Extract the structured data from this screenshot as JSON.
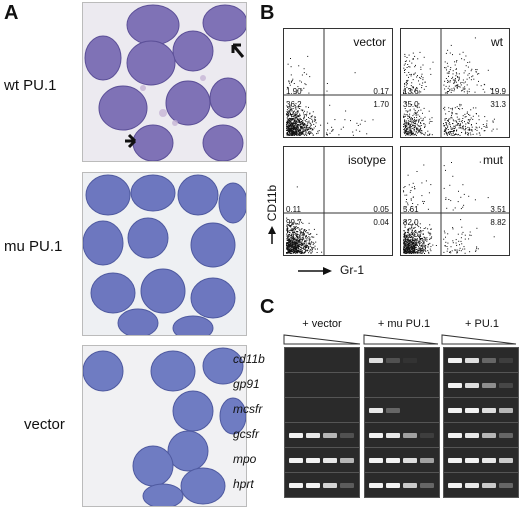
{
  "panel_a": {
    "letter": "A",
    "rows": [
      {
        "label": "wt PU.1"
      },
      {
        "label": "mu PU.1"
      },
      {
        "label": "vector"
      }
    ]
  },
  "panel_b": {
    "letter": "B",
    "y_axis_label": "CD11b",
    "x_axis_label": "Gr-1",
    "plots": [
      {
        "name": "vector",
        "ul": "1.90",
        "ur": "0.17",
        "ll": "36.2",
        "lr": "1.70"
      },
      {
        "name": "wt",
        "ul": "13.6",
        "ur": "19.9",
        "ll": "35.0",
        "lr": "31.3"
      },
      {
        "name": "isotype",
        "ul": "0.11",
        "ur": "0.05",
        "ll": "99.7",
        "lr": "0.04"
      },
      {
        "name": "mut",
        "ul": "5.61",
        "ur": "3.51",
        "ll": "82.0",
        "lr": "8.82"
      }
    ]
  },
  "panel_c": {
    "letter": "C",
    "groups": [
      "+ vector",
      "+ mu PU.1",
      "+ PU.1"
    ],
    "genes": [
      "cd11b",
      "gp91",
      "mcsfr",
      "gcsfr",
      "mpo",
      "hprt"
    ],
    "band_intensity": [
      [
        [
          0,
          0,
          0,
          0
        ],
        [
          0.9,
          0.2,
          0.05,
          0
        ],
        [
          1,
          0.9,
          0.3,
          0.1
        ]
      ],
      [
        [
          0,
          0,
          0,
          0
        ],
        [
          0,
          0,
          0,
          0
        ],
        [
          1,
          0.9,
          0.5,
          0.15
        ]
      ],
      [
        [
          0,
          0,
          0,
          0
        ],
        [
          0.95,
          0.3,
          0,
          0
        ],
        [
          1,
          1,
          0.9,
          0.7
        ]
      ],
      [
        [
          1,
          0.95,
          0.7,
          0.2
        ],
        [
          1,
          0.95,
          0.6,
          0.1
        ],
        [
          1,
          0.95,
          0.7,
          0.3
        ]
      ],
      [
        [
          1,
          1,
          0.95,
          0.7
        ],
        [
          1,
          1,
          0.9,
          0.6
        ],
        [
          1,
          1,
          0.95,
          0.8
        ]
      ],
      [
        [
          1,
          1,
          0.85,
          0.25
        ],
        [
          1,
          1,
          0.8,
          0.3
        ],
        [
          1,
          0.95,
          0.8,
          0.3
        ]
      ]
    ]
  }
}
